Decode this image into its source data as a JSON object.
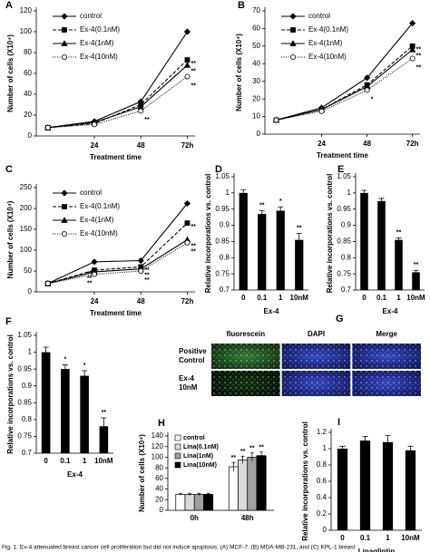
{
  "chart_data": [
    {
      "type": "line",
      "label": "A",
      "ylabel": "Number of cells (X10⁴)",
      "xlabel": "Treatment time",
      "x": [
        0,
        24,
        48,
        72
      ],
      "xlim": [
        -6,
        76
      ],
      "xticks": [
        24,
        48,
        {
          "value": 72,
          "label": "72h"
        }
      ],
      "ylim": [
        0,
        120
      ],
      "yticks": [
        0,
        20,
        40,
        60,
        80,
        100,
        120
      ],
      "series": [
        {
          "name": "control",
          "color": "#000",
          "dash": "solid",
          "marker": "diamond",
          "values": [
            8,
            14,
            33,
            100
          ],
          "sig": [
            null,
            null,
            null,
            null
          ]
        },
        {
          "name": "Ex-4(0.1nM)",
          "color": "#000",
          "dash": "dashed",
          "marker": "square",
          "values": [
            8,
            12,
            30,
            73
          ],
          "sig": [
            null,
            null,
            null,
            "**"
          ]
        },
        {
          "name": "Ex-4(1nM)",
          "color": "#000",
          "dash": "solid",
          "marker": "triangle",
          "values": [
            8,
            13,
            28,
            68
          ],
          "sig": [
            null,
            null,
            null,
            "**"
          ]
        },
        {
          "name": "Ex-4(10nM)",
          "color": "#000",
          "dash": "dotted",
          "marker": "circle",
          "values": [
            8,
            11,
            24,
            57
          ],
          "sig": [
            null,
            null,
            "**",
            "**"
          ]
        }
      ]
    },
    {
      "type": "line",
      "label": "B",
      "ylabel": "Number of cells (X10⁴)",
      "xlabel": "Treatment time",
      "x": [
        0,
        24,
        48,
        72
      ],
      "xlim": [
        -6,
        76
      ],
      "xticks": [
        24,
        48,
        {
          "value": 72,
          "label": "72h"
        }
      ],
      "ylim": [
        0,
        70
      ],
      "yticks": [
        0,
        10,
        20,
        30,
        40,
        50,
        60,
        70
      ],
      "series": [
        {
          "name": "control",
          "color": "#000",
          "dash": "solid",
          "marker": "diamond",
          "values": [
            8,
            15,
            32,
            63
          ],
          "sig": [
            null,
            null,
            null,
            null
          ]
        },
        {
          "name": "Ex-4(0.1nM)",
          "color": "#000",
          "dash": "dashed",
          "marker": "square",
          "values": [
            8,
            14,
            28,
            50
          ],
          "sig": [
            null,
            null,
            null,
            "**"
          ]
        },
        {
          "name": "Ex-4(1nM)",
          "color": "#000",
          "dash": "solid",
          "marker": "triangle",
          "values": [
            8,
            14,
            27,
            48
          ],
          "sig": [
            null,
            null,
            null,
            "**"
          ]
        },
        {
          "name": "Ex-4(10nM)",
          "color": "#000",
          "dash": "dotted",
          "marker": "circle",
          "values": [
            8,
            13,
            25,
            43
          ],
          "sig": [
            null,
            null,
            "*",
            "**"
          ]
        }
      ]
    },
    {
      "type": "line",
      "label": "C",
      "ylabel": "Number of cells (X10⁴)",
      "xlabel": "Treatment time",
      "x": [
        0,
        24,
        48,
        72
      ],
      "xlim": [
        -6,
        76
      ],
      "xticks": [
        24,
        48,
        {
          "value": 72,
          "label": "72h"
        }
      ],
      "ylim": [
        0,
        250
      ],
      "yticks": [
        0,
        50,
        100,
        150,
        200,
        250
      ],
      "series": [
        {
          "name": "control",
          "color": "#000",
          "dash": "solid",
          "marker": "diamond",
          "values": [
            20,
            72,
            75,
            212
          ],
          "sig": [
            null,
            null,
            null,
            null
          ]
        },
        {
          "name": "Ex-4(0.1nM)",
          "color": "#000",
          "dash": "dashed",
          "marker": "square",
          "values": [
            20,
            52,
            60,
            165
          ],
          "sig": [
            null,
            "**",
            "**",
            "**"
          ]
        },
        {
          "name": "Ex-4(1nM)",
          "color": "#000",
          "dash": "solid",
          "marker": "triangle",
          "values": [
            20,
            48,
            55,
            125
          ],
          "sig": [
            null,
            "**",
            "**",
            "**"
          ]
        },
        {
          "name": "Ex-4(10nM)",
          "color": "#000",
          "dash": "dotted",
          "marker": "circle",
          "values": [
            20,
            42,
            50,
            118
          ],
          "sig": [
            null,
            "**",
            "**",
            "**"
          ]
        }
      ]
    },
    {
      "type": "bar",
      "label": "D",
      "ylabel": "Relative incorporations vs. control",
      "xlabel": "Ex-4",
      "categories": [
        "0",
        "0.1",
        "1",
        "10nM"
      ],
      "values": [
        1.0,
        0.935,
        0.945,
        0.855
      ],
      "errors": [
        0.01,
        0.01,
        0.012,
        0.02
      ],
      "sig": [
        null,
        "**",
        "*",
        "**"
      ],
      "color": "#000",
      "ylim": [
        0.7,
        1.05
      ],
      "yticks": [
        0.7,
        0.75,
        0.8,
        0.85,
        0.9,
        0.95,
        1,
        1.05
      ]
    },
    {
      "type": "bar",
      "label": "E",
      "ylabel": "Relative incorporations vs. control",
      "xlabel": "Ex-4",
      "categories": [
        "0",
        "0.1",
        "1",
        "10nM"
      ],
      "values": [
        1.0,
        0.975,
        0.855,
        0.755
      ],
      "errors": [
        0.008,
        0.008,
        0.006,
        0.006
      ],
      "sig": [
        null,
        null,
        "**",
        "**"
      ],
      "color": "#000",
      "ylim": [
        0.7,
        1.05
      ],
      "yticks": [
        0.7,
        0.75,
        0.8,
        0.85,
        0.9,
        0.95,
        1,
        1.05
      ]
    },
    {
      "type": "bar",
      "label": "F",
      "ylabel": "Relative incorporations vs. control",
      "xlabel": "Ex-4",
      "categories": [
        "0",
        "0.1",
        "1",
        "10nM"
      ],
      "values": [
        1.0,
        0.95,
        0.93,
        0.78
      ],
      "errors": [
        0.015,
        0.012,
        0.015,
        0.025
      ],
      "sig": [
        null,
        "*",
        "*",
        "**"
      ],
      "color": "#000",
      "ylim": [
        0.7,
        1.05
      ],
      "yticks": [
        0.7,
        0.75,
        0.8,
        0.85,
        0.9,
        0.95,
        1,
        1.05
      ]
    },
    {
      "type": "image_grid",
      "label": "G",
      "columns": [
        "fluorescein",
        "DAPI",
        "Merge"
      ],
      "rows": [
        "Positive Control",
        "Ex-4 10nM"
      ]
    },
    {
      "type": "grouped_bar",
      "label": "H",
      "ylabel": "Number of cells (X10⁴)",
      "categories": [
        "0h",
        "48h"
      ],
      "ylim": [
        0,
        140
      ],
      "yticks": [
        0,
        20,
        40,
        60,
        80,
        100,
        120,
        140
      ],
      "series": [
        {
          "name": "control",
          "color": "#ffffff",
          "values": [
            30,
            82
          ],
          "errors": [
            2,
            8
          ],
          "sig": [
            null,
            "**"
          ]
        },
        {
          "name": "Lina(0.1nM)",
          "color": "#d9d9d9",
          "values": [
            30,
            95
          ],
          "errors": [
            2,
            7
          ],
          "sig": [
            null,
            "**"
          ]
        },
        {
          "name": "Lina(1nM)",
          "color": "#a0a0a0",
          "values": [
            30,
            100
          ],
          "errors": [
            2,
            8
          ],
          "sig": [
            null,
            "**"
          ]
        },
        {
          "name": "Lina(10nM)",
          "color": "#000000",
          "values": [
            30,
            103
          ],
          "errors": [
            2,
            7
          ],
          "sig": [
            null,
            "**"
          ]
        }
      ]
    },
    {
      "type": "bar",
      "label": "I",
      "ylabel": "Relative incorporations vs. control",
      "xlabel": "Linagliptin",
      "categories": [
        "0",
        "0.1",
        "1",
        "10nM"
      ],
      "values": [
        1.0,
        1.1,
        1.08,
        0.98
      ],
      "errors": [
        0.03,
        0.05,
        0.08,
        0.05
      ],
      "sig": [
        null,
        null,
        null,
        null
      ],
      "color": "#000",
      "ylim": [
        0,
        1.2
      ],
      "yticks": [
        0,
        0.2,
        0.4,
        0.6,
        0.8,
        1,
        1.2
      ]
    }
  ],
  "caption": "Fig. 1. Ex-4 attenuated breast cancer cell proliferation but did not induce apoptosis. (A) MCF-7, (B) MDA-MB-231, and (C) KPL-1 breast"
}
